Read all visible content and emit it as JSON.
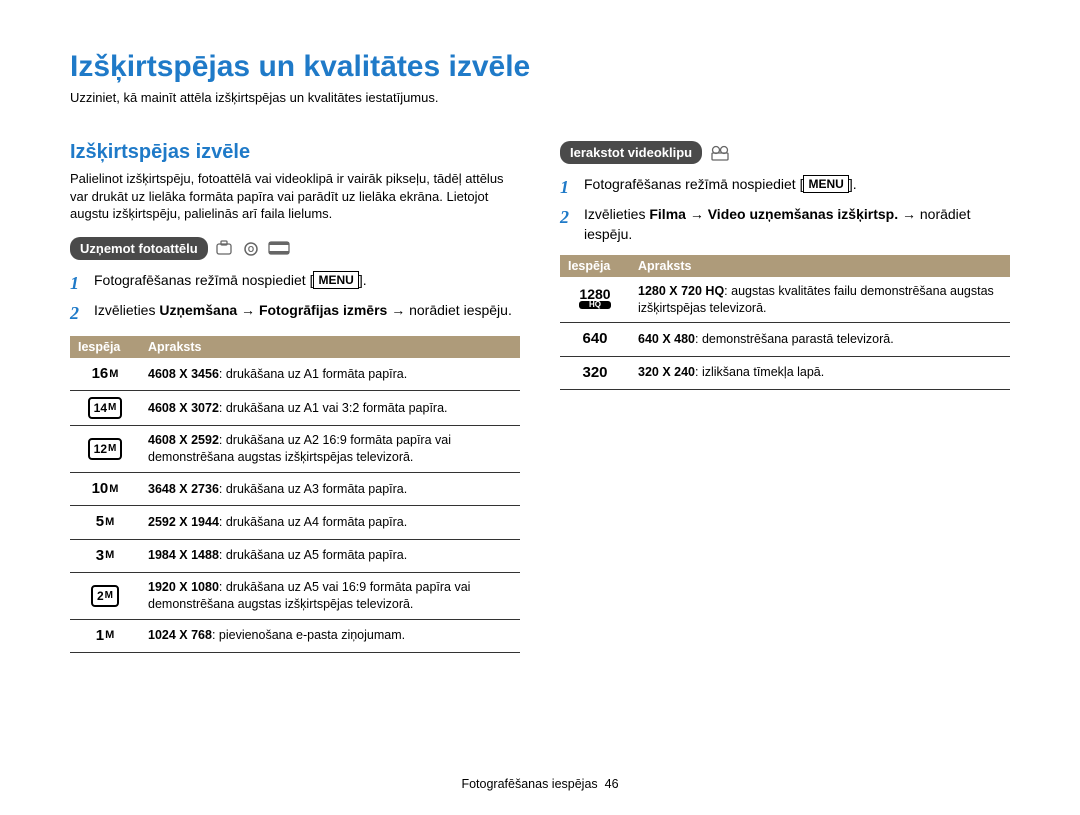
{
  "page": {
    "title": "Izšķirtspējas un kvalitātes izvēle",
    "subtitle": "Uzziniet, kā mainīt attēla izšķirtspējas un kvalitātes iestatījumus."
  },
  "left": {
    "section_title": "Izšķirtspējas izvēle",
    "intro": "Palielinot izšķirtspēju, fotoattēlā vai videoklipā ir vairāk pikseļu, tādēļ attēlus var drukāt uz lielāka formāta papīra vai parādīt uz lielāka ekrāna. Lietojot augstu izšķirtspēju, palielinās arī faila lielums.",
    "pill": "Uzņemot fotoattēlu",
    "steps": [
      {
        "num": "1",
        "pre": "Fotografēšanas režīmā nospiediet [",
        "menu": "MENU",
        "post": "]."
      },
      {
        "num": "2",
        "text_html": "Izvēlieties <b>Uzņemšana</b> → <b>Fotogrāfijas izmērs</b> → norādiet iespēju."
      }
    ],
    "table": {
      "headers": [
        "Iespēja",
        "Apraksts"
      ],
      "rows": [
        {
          "icon_big": "16",
          "icon_small": "M",
          "boxed": false,
          "desc_b": "4608 X 3456",
          "desc": ": drukāšana uz A1 formāta papīra."
        },
        {
          "icon_big": "14",
          "icon_small": "M",
          "boxed": true,
          "desc_b": "4608 X 3072",
          "desc": ": drukāšana uz A1 vai 3:2 formāta papīra."
        },
        {
          "icon_big": "12",
          "icon_small": "M",
          "boxed": true,
          "desc_b": "4608 X 2592",
          "desc": ": drukāšana uz A2 16:9 formāta papīra vai demonstrēšana augstas izšķirtspējas televizorā."
        },
        {
          "icon_big": "10",
          "icon_small": "M",
          "boxed": false,
          "desc_b": "3648 X 2736",
          "desc": ": drukāšana uz A3 formāta papīra."
        },
        {
          "icon_big": "5",
          "icon_small": "M",
          "boxed": false,
          "desc_b": "2592 X 1944",
          "desc": ": drukāšana uz A4 formāta papīra."
        },
        {
          "icon_big": "3",
          "icon_small": "M",
          "boxed": false,
          "desc_b": "1984 X 1488",
          "desc": ": drukāšana uz A5 formāta papīra."
        },
        {
          "icon_big": "2",
          "icon_small": "M",
          "boxed": true,
          "desc_b": "1920 X 1080",
          "desc": ": drukāšana uz A5 vai 16:9 formāta papīra vai demonstrēšana augstas izšķirtspējas televizorā."
        },
        {
          "icon_big": "1",
          "icon_small": "M",
          "boxed": false,
          "desc_b": "1024 X 768",
          "desc": ": pievienošana e-pasta ziņojumam."
        }
      ]
    }
  },
  "right": {
    "pill": "Ierakstot videoklipu",
    "steps": [
      {
        "num": "1",
        "pre": "Fotografēšanas režīmā nospiediet [",
        "menu": "MENU",
        "post": "]."
      },
      {
        "num": "2",
        "text_html": "Izvēlieties <b>Filma</b> → <b>Video uzņemšanas izšķirtsp.</b> → norādiet iespēju."
      }
    ],
    "table": {
      "headers": [
        "Iespēja",
        "Apraksts"
      ],
      "rows": [
        {
          "video": {
            "l1": "1280",
            "l2": "HQ"
          },
          "desc_b": "1280 X 720 HQ",
          "desc": ": augstas kvalitātes failu demonstrēšana augstas izšķirtspējas televizorā."
        },
        {
          "icon_big": "640",
          "desc_b": "640 X 480",
          "desc": ": demonstrēšana parastā televizorā."
        },
        {
          "icon_big": "320",
          "desc_b": "320 X 240",
          "desc": ": izlikšana tīmekļa lapā."
        }
      ]
    }
  },
  "footer": {
    "text": "Fotografēšanas iespējas",
    "page": "46"
  },
  "colors": {
    "accent": "#1f7ac8",
    "table_header_bg": "#ae9b7a",
    "pill_bg": "#4a4a4a",
    "text": "#000000",
    "background": "#ffffff",
    "row_border": "#333333"
  }
}
